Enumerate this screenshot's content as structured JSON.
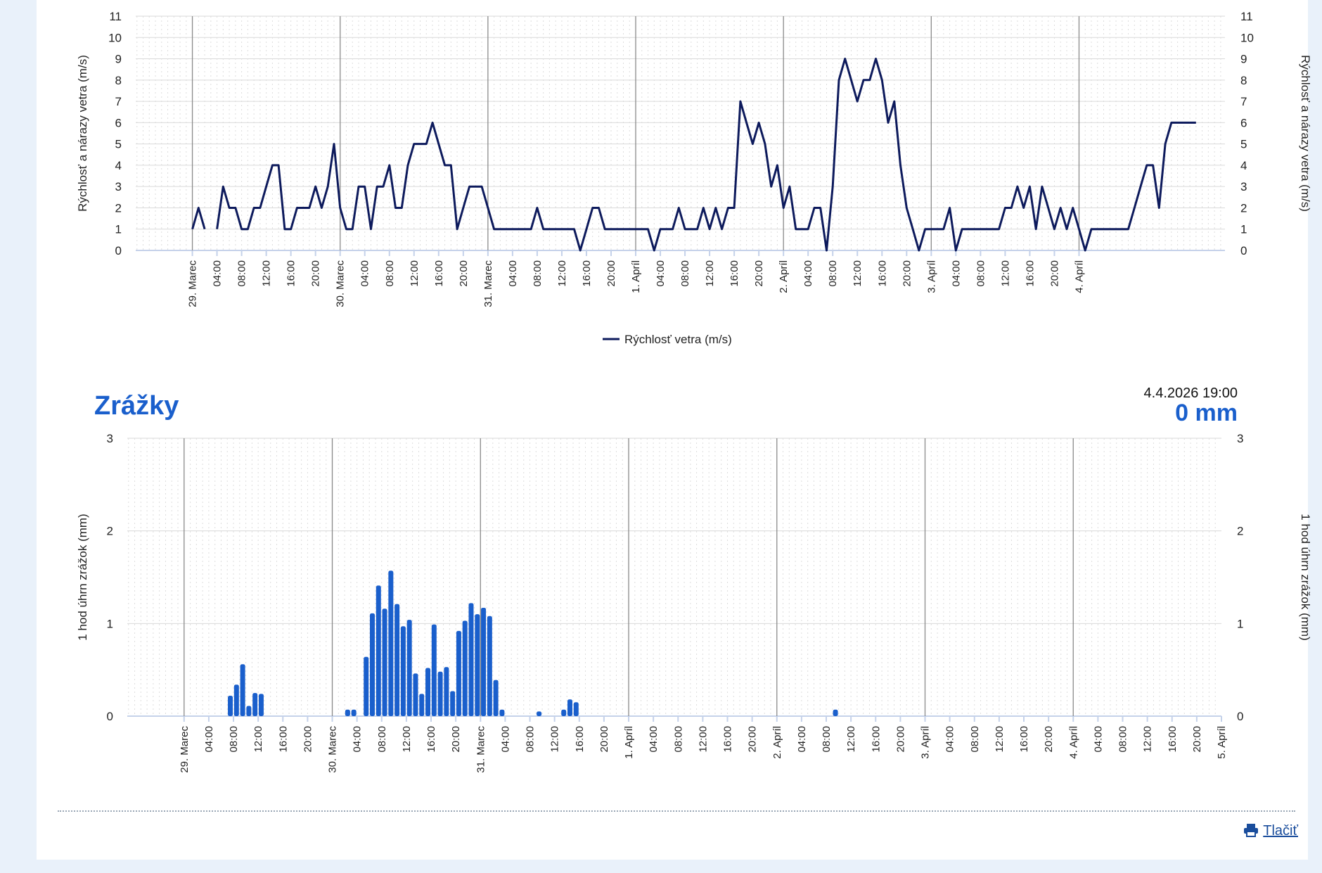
{
  "colors": {
    "wind": "#0d1a5c",
    "rain": "#1a5fcc",
    "grid": "#d9d9d9",
    "day_line": "#8a8a8a"
  },
  "wind_legend": "Rýchlosť vetra (m/s)",
  "rain_title": "Zrážky",
  "rain_timestamp": "4.4.2026 19:00",
  "rain_current": "0 mm",
  "print_label": "Tlačiť",
  "print_icon": "printer-icon",
  "chart_data": [
    {
      "type": "line",
      "ylabel": "Rýchlosť a nárazy vetra (m/s)",
      "ylabel_right": "Rýchlosť a nárazy vetra (m/s)",
      "ylim": [
        0,
        11
      ],
      "yticks": [
        "0",
        "1",
        "2",
        "3",
        "4",
        "5",
        "6",
        "7",
        "8",
        "9",
        "10",
        "11"
      ],
      "x_start": "29. Marec 00:00",
      "x_end": "4. Apríl 23:00",
      "day_labels": [
        "29. Marec",
        "30. Marec",
        "31. Marec",
        "1. Apríl",
        "2. Apríl",
        "3. Apríl",
        "4. Apríl"
      ],
      "hour_labels": [
        "04:00",
        "08:00",
        "12:00",
        "16:00",
        "20:00"
      ],
      "grid": true,
      "legend": "bottom-center",
      "series": [
        {
          "name": "Rýchlosť vetra (m/s)",
          "values": [
            1,
            2,
            1,
            null,
            1,
            3,
            2,
            2,
            1,
            1,
            2,
            2,
            3,
            4,
            4,
            1,
            1,
            2,
            2,
            2,
            3,
            2,
            3,
            5,
            2,
            1,
            1,
            3,
            3,
            1,
            3,
            3,
            4,
            2,
            2,
            4,
            5,
            5,
            5,
            6,
            5,
            4,
            4,
            1,
            2,
            3,
            3,
            3,
            2,
            1,
            1,
            1,
            1,
            1,
            1,
            1,
            2,
            1,
            1,
            1,
            1,
            1,
            1,
            0,
            1,
            2,
            2,
            1,
            1,
            1,
            1,
            1,
            1,
            1,
            1,
            0,
            1,
            1,
            1,
            2,
            1,
            1,
            1,
            2,
            1,
            2,
            1,
            2,
            2,
            7,
            6,
            5,
            6,
            5,
            3,
            4,
            2,
            3,
            1,
            1,
            1,
            2,
            2,
            0,
            3,
            8,
            9,
            8,
            7,
            8,
            8,
            9,
            8,
            6,
            7,
            4,
            2,
            1,
            0,
            1,
            1,
            1,
            1,
            2,
            0,
            1,
            1,
            1,
            1,
            1,
            1,
            1,
            2,
            2,
            3,
            2,
            3,
            1,
            3,
            2,
            1,
            2,
            1,
            2,
            1,
            0,
            1,
            1,
            1,
            1,
            1,
            1,
            1,
            2,
            3,
            4,
            4,
            2,
            5,
            6,
            6,
            6,
            6,
            6
          ]
        }
      ]
    },
    {
      "type": "bar",
      "ylabel": "1 hod úhrn zrážok (mm)",
      "ylabel_right": "1 hod úhrn zrážok (mm)",
      "ylim": [
        0,
        3
      ],
      "yticks": [
        "0",
        "1",
        "2",
        "3"
      ],
      "x_start": "29. Marec 00:00",
      "x_end": "5. Apríl 00:00",
      "day_labels": [
        "29. Marec",
        "30. Marec",
        "31. Marec",
        "1. Apríl",
        "2. Apríl",
        "3. Apríl",
        "4. Apríl",
        "5. Apríl"
      ],
      "hour_labels": [
        "04:00",
        "08:00",
        "12:00",
        "16:00",
        "20:00"
      ],
      "grid": true,
      "series": [
        {
          "name": "",
          "bars": [
            {
              "t": "29.3 08:00",
              "v": 0.22
            },
            {
              "t": "29.3 09:00",
              "v": 0.34
            },
            {
              "t": "29.3 10:00",
              "v": 0.56
            },
            {
              "t": "29.3 11:00",
              "v": 0.11
            },
            {
              "t": "29.3 12:00",
              "v": 0.25
            },
            {
              "t": "29.3 13:00",
              "v": 0.24
            },
            {
              "t": "30.3 03:00",
              "v": 0.07
            },
            {
              "t": "30.3 04:00",
              "v": 0.07
            },
            {
              "t": "30.3 06:00",
              "v": 0.64
            },
            {
              "t": "30.3 07:00",
              "v": 1.11
            },
            {
              "t": "30.3 08:00",
              "v": 1.41
            },
            {
              "t": "30.3 09:00",
              "v": 1.16
            },
            {
              "t": "30.3 10:00",
              "v": 1.57
            },
            {
              "t": "30.3 11:00",
              "v": 1.21
            },
            {
              "t": "30.3 12:00",
              "v": 0.97
            },
            {
              "t": "30.3 13:00",
              "v": 1.04
            },
            {
              "t": "30.3 14:00",
              "v": 0.46
            },
            {
              "t": "30.3 15:00",
              "v": 0.24
            },
            {
              "t": "30.3 16:00",
              "v": 0.52
            },
            {
              "t": "30.3 17:00",
              "v": 0.99
            },
            {
              "t": "30.3 18:00",
              "v": 0.48
            },
            {
              "t": "30.3 19:00",
              "v": 0.53
            },
            {
              "t": "30.3 20:00",
              "v": 0.27
            },
            {
              "t": "30.3 21:00",
              "v": 0.92
            },
            {
              "t": "30.3 22:00",
              "v": 1.03
            },
            {
              "t": "30.3 23:00",
              "v": 1.22
            },
            {
              "t": "31.3 00:00",
              "v": 1.1
            },
            {
              "t": "31.3 01:00",
              "v": 1.17
            },
            {
              "t": "31.3 02:00",
              "v": 1.08
            },
            {
              "t": "31.3 03:00",
              "v": 0.39
            },
            {
              "t": "31.3 04:00",
              "v": 0.07
            },
            {
              "t": "31.3 10:00",
              "v": 0.05
            },
            {
              "t": "31.3 14:00",
              "v": 0.07
            },
            {
              "t": "31.3 15:00",
              "v": 0.18
            },
            {
              "t": "31.3 16:00",
              "v": 0.15
            },
            {
              "t": "2.4 10:00",
              "v": 0.07
            }
          ]
        }
      ]
    }
  ]
}
